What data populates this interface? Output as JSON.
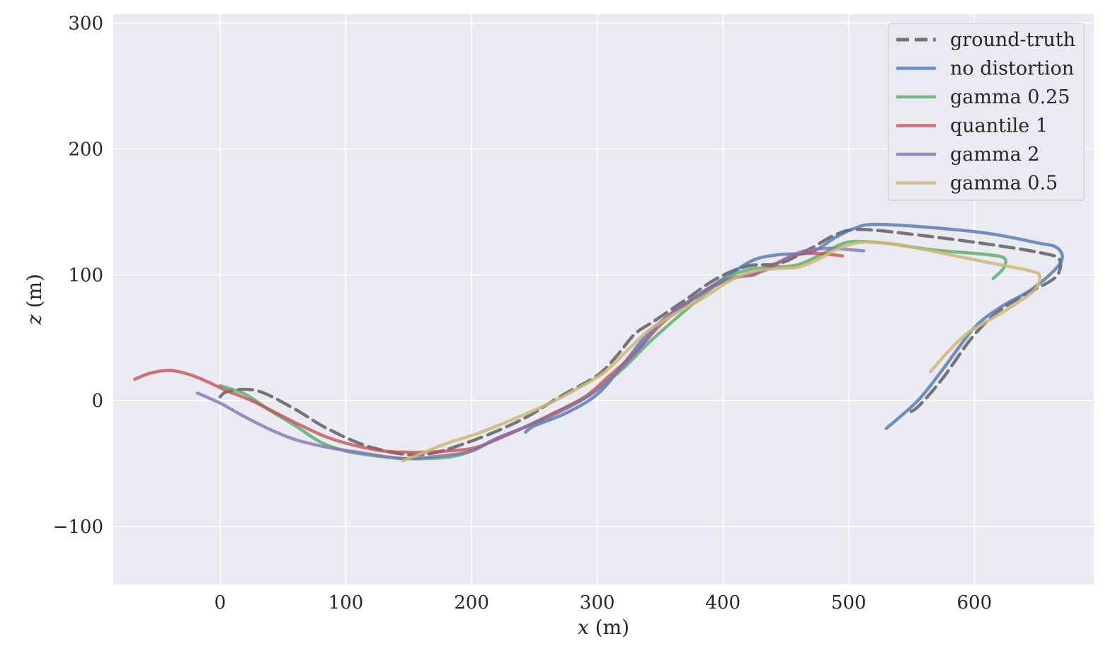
{
  "chart_data": {
    "type": "line",
    "xlabel_var": "x",
    "xlabel_unit": " (m)",
    "ylabel_var": "z",
    "ylabel_unit": " (m)",
    "xlim": [
      -85,
      695
    ],
    "ylim": [
      -146,
      307
    ],
    "xticks": [
      0,
      100,
      200,
      300,
      400,
      500,
      600
    ],
    "yticks": [
      -100,
      0,
      100,
      200,
      300
    ],
    "ytick_labels": [
      "−100",
      "0",
      "100",
      "200",
      "300"
    ],
    "grid": true,
    "legend_position": "top-right",
    "colors": {
      "background": "#eaeaf2",
      "ground_truth": "#606060",
      "no_distortion": "#4c72b0",
      "gamma_025": "#55a868",
      "quantile_1": "#c44e52",
      "gamma_2": "#8172b2",
      "gamma_05": "#ccb974"
    },
    "series": [
      {
        "name": "ground-truth",
        "color": "#606060",
        "dash": true,
        "opacity": 0.85,
        "points": [
          [
            0,
            3
          ],
          [
            5,
            7
          ],
          [
            20,
            9
          ],
          [
            35,
            6
          ],
          [
            60,
            -7
          ],
          [
            85,
            -22
          ],
          [
            120,
            -37
          ],
          [
            160,
            -43
          ],
          [
            200,
            -32
          ],
          [
            240,
            -15
          ],
          [
            270,
            3
          ],
          [
            300,
            20
          ],
          [
            315,
            35
          ],
          [
            330,
            53
          ],
          [
            345,
            63
          ],
          [
            370,
            80
          ],
          [
            395,
            97
          ],
          [
            420,
            107
          ],
          [
            445,
            109
          ],
          [
            470,
            121
          ],
          [
            490,
            132
          ],
          [
            510,
            136
          ],
          [
            560,
            131
          ],
          [
            620,
            123
          ],
          [
            655,
            117
          ],
          [
            667,
            113
          ],
          [
            668,
            104
          ],
          [
            662,
            96
          ],
          [
            640,
            84
          ],
          [
            618,
            70
          ],
          [
            598,
            50
          ],
          [
            575,
            18
          ],
          [
            555,
            -5
          ],
          [
            545,
            -10
          ]
        ]
      },
      {
        "name": "no distortion",
        "color": "#4c72b0",
        "dash": false,
        "opacity": 0.78,
        "points": [
          [
            243,
            -25
          ],
          [
            250,
            -20
          ],
          [
            275,
            -10
          ],
          [
            300,
            5
          ],
          [
            320,
            28
          ],
          [
            340,
            53
          ],
          [
            360,
            70
          ],
          [
            385,
            87
          ],
          [
            405,
            100
          ],
          [
            425,
            112
          ],
          [
            445,
            116
          ],
          [
            470,
            118
          ],
          [
            490,
            130
          ],
          [
            505,
            137
          ],
          [
            520,
            140
          ],
          [
            560,
            138
          ],
          [
            610,
            133
          ],
          [
            652,
            125
          ],
          [
            665,
            122
          ],
          [
            670,
            114
          ],
          [
            664,
            104
          ],
          [
            645,
            88
          ],
          [
            622,
            75
          ],
          [
            600,
            58
          ],
          [
            575,
            25
          ],
          [
            555,
            0
          ],
          [
            530,
            -22
          ]
        ]
      },
      {
        "name": "gamma 0.25",
        "color": "#55a868",
        "dash": false,
        "opacity": 0.78,
        "points": [
          [
            0,
            12
          ],
          [
            20,
            5
          ],
          [
            40,
            -8
          ],
          [
            60,
            -20
          ],
          [
            80,
            -33
          ],
          [
            100,
            -40
          ],
          [
            125,
            -44
          ],
          [
            150,
            -46
          ],
          [
            180,
            -45
          ],
          [
            200,
            -40
          ],
          [
            220,
            -30
          ],
          [
            245,
            -20
          ],
          [
            270,
            -8
          ],
          [
            295,
            5
          ],
          [
            320,
            25
          ],
          [
            340,
            45
          ],
          [
            360,
            63
          ],
          [
            380,
            80
          ],
          [
            400,
            96
          ],
          [
            420,
            104
          ],
          [
            440,
            106
          ],
          [
            460,
            108
          ],
          [
            480,
            117
          ],
          [
            500,
            126
          ],
          [
            530,
            125
          ],
          [
            565,
            120
          ],
          [
            610,
            116
          ],
          [
            624,
            113
          ],
          [
            623,
            105
          ],
          [
            615,
            97
          ]
        ]
      },
      {
        "name": "quantile 1",
        "color": "#c44e52",
        "dash": false,
        "opacity": 0.78,
        "points": [
          [
            -68,
            17
          ],
          [
            -55,
            22
          ],
          [
            -40,
            24
          ],
          [
            -25,
            21
          ],
          [
            -10,
            15
          ],
          [
            5,
            8
          ],
          [
            25,
            0
          ],
          [
            45,
            -10
          ],
          [
            65,
            -20
          ],
          [
            85,
            -29
          ],
          [
            105,
            -35
          ],
          [
            130,
            -40
          ],
          [
            155,
            -41
          ],
          [
            180,
            -40
          ],
          [
            200,
            -38
          ],
          [
            215,
            -33
          ],
          [
            240,
            -22
          ],
          [
            265,
            -10
          ],
          [
            290,
            3
          ],
          [
            310,
            20
          ],
          [
            330,
            38
          ],
          [
            350,
            60
          ],
          [
            370,
            76
          ],
          [
            390,
            90
          ],
          [
            410,
            98
          ],
          [
            425,
            100
          ],
          [
            440,
            108
          ],
          [
            460,
            116
          ],
          [
            475,
            117
          ],
          [
            495,
            115
          ]
        ]
      },
      {
        "name": "gamma 2",
        "color": "#8172b2",
        "dash": false,
        "opacity": 0.78,
        "points": [
          [
            -18,
            6
          ],
          [
            0,
            -2
          ],
          [
            20,
            -13
          ],
          [
            40,
            -23
          ],
          [
            60,
            -31
          ],
          [
            85,
            -37
          ],
          [
            110,
            -41
          ],
          [
            145,
            -46
          ],
          [
            175,
            -44
          ],
          [
            200,
            -40
          ],
          [
            220,
            -30
          ],
          [
            245,
            -20
          ],
          [
            270,
            -9
          ],
          [
            295,
            5
          ],
          [
            315,
            22
          ],
          [
            335,
            43
          ],
          [
            350,
            62
          ],
          [
            370,
            77
          ],
          [
            395,
            92
          ],
          [
            415,
            99
          ],
          [
            435,
            104
          ],
          [
            450,
            113
          ],
          [
            465,
            119
          ],
          [
            485,
            121
          ],
          [
            500,
            120
          ],
          [
            512,
            119
          ]
        ]
      },
      {
        "name": "gamma 0.5",
        "color": "#ccb974",
        "dash": false,
        "opacity": 0.85,
        "points": [
          [
            145,
            -48
          ],
          [
            160,
            -42
          ],
          [
            180,
            -34
          ],
          [
            205,
            -26
          ],
          [
            235,
            -14
          ],
          [
            260,
            -3
          ],
          [
            285,
            10
          ],
          [
            305,
            22
          ],
          [
            322,
            38
          ],
          [
            340,
            55
          ],
          [
            360,
            68
          ],
          [
            385,
            82
          ],
          [
            405,
            95
          ],
          [
            425,
            103
          ],
          [
            445,
            105
          ],
          [
            460,
            106
          ],
          [
            475,
            112
          ],
          [
            490,
            120
          ],
          [
            505,
            125
          ],
          [
            520,
            126
          ],
          [
            550,
            122
          ],
          [
            585,
            115
          ],
          [
            620,
            108
          ],
          [
            645,
            103
          ],
          [
            652,
            99
          ],
          [
            648,
            88
          ],
          [
            630,
            75
          ],
          [
            612,
            64
          ],
          [
            595,
            54
          ],
          [
            580,
            40
          ],
          [
            565,
            23
          ]
        ]
      }
    ]
  }
}
